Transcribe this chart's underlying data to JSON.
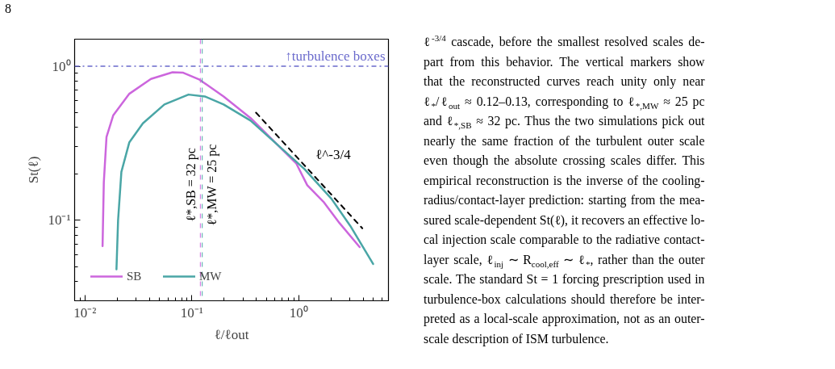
{
  "chart_data": {
    "type": "line",
    "xlabel": "ℓ/ℓout",
    "ylabel": "St(ℓ)",
    "log": "xy",
    "xlim": [
      0.008,
      6.9
    ],
    "ylim": [
      0.03,
      1.5
    ],
    "xticks": [
      {
        "value": 0.01,
        "label": "10⁻²"
      },
      {
        "value": 0.1,
        "label": "10⁻¹"
      },
      {
        "value": 1,
        "label": "10⁰"
      }
    ],
    "yticks": [
      {
        "value": 0.1,
        "label": "10⁻¹"
      },
      {
        "value": 1,
        "label": "10⁰"
      }
    ],
    "grid": false,
    "legend": "bottom left",
    "series": [
      {
        "name": "SB",
        "color": "#cc66dd",
        "x": [
          0.0146,
          0.015,
          0.0159,
          0.0184,
          0.026,
          0.0414,
          0.0659,
          0.083,
          0.118,
          0.198,
          0.354,
          0.633,
          0.95,
          1.2,
          1.7,
          2.4,
          3.71
        ],
        "values": [
          0.068,
          0.176,
          0.348,
          0.481,
          0.663,
          0.828,
          0.915,
          0.908,
          0.818,
          0.637,
          0.461,
          0.309,
          0.233,
          0.169,
          0.132,
          0.096,
          0.067
        ]
      },
      {
        "name": "MW",
        "color": "#4aa6a6",
        "x": [
          0.0197,
          0.0204,
          0.0219,
          0.026,
          0.0348,
          0.0553,
          0.093,
          0.132,
          0.198,
          0.354,
          0.633,
          1.13,
          2.02,
          3.03,
          4.96
        ],
        "values": [
          0.048,
          0.1,
          0.206,
          0.321,
          0.426,
          0.565,
          0.655,
          0.637,
          0.565,
          0.444,
          0.309,
          0.215,
          0.138,
          0.092,
          0.052
        ]
      },
      {
        "name": "ℓ^-3/4",
        "color": "#000000",
        "line_style": "dashed",
        "x": [
          0.398,
          3.93
        ],
        "values": [
          0.5,
          0.0887
        ]
      }
    ],
    "ref_lines": [
      {
        "axis": "y",
        "value": 1,
        "label": "↑turbulence boxes",
        "color": "#6a6acc",
        "line_style": "dashdot"
      },
      {
        "axis": "x",
        "value": 0.12,
        "color": "#cc66dd",
        "line_style": "dashed"
      },
      {
        "axis": "x",
        "value": 0.125,
        "color": "#4aa6a6",
        "line_style": "dashed"
      }
    ],
    "annotations": [
      "8",
      {
        "text": "ℓ*,SB = 32 pc",
        "x": 0.12,
        "y": 0.17
      },
      {
        "text": "ℓ*,MW = 25 pc",
        "x": 0.125,
        "y": 0.17
      },
      "ℓ$^{-3/4}$ cascade, before the smallest resolved scales de-\npart from this behavior.  The vertical markers show\nthat the reconstructed curves reach unity only near\nℓ$_{*}$/ℓ$_{out}$ ≈ 0.12–0.13, corresponding to ℓ$_{*,MW}$ ≈ 25 pc\nand ℓ$_{*,SB}$ ≈ 32 pc.  Thus the two simulations pick out\nnearly the same fraction of the turbulent outer scale\neven though the absolute crossing scales differ.  This\nempirical reconstruction is the inverse of the cooling-\nradius/contact-layer prediction: starting from the mea-\nsured scale-dependent St(ℓ), it recovers an effective lo-\ncal injection scale comparable to the radiative contact-\nlayer scale, ℓ$_{inj}$ ∼ R$_{cool,eff}$ ∼ ℓ$_{*}$, rather than the outer\nscale. The standard St = 1 forcing prescription used in\nturbulence-box calculations should therefore be inter-\npreted as a local-scale approximation, not as an outer-\nscale description of ISM turbulence."
    ]
  }
}
